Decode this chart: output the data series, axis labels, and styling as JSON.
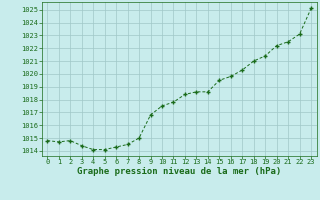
{
  "x": [
    0,
    1,
    2,
    3,
    4,
    5,
    6,
    7,
    8,
    9,
    10,
    11,
    12,
    13,
    14,
    15,
    16,
    17,
    18,
    19,
    20,
    21,
    22,
    23
  ],
  "y": [
    1014.8,
    1014.7,
    1014.8,
    1014.4,
    1014.1,
    1014.1,
    1014.3,
    1014.5,
    1015.0,
    1016.8,
    1017.5,
    1017.8,
    1018.4,
    1018.6,
    1018.6,
    1019.5,
    1019.8,
    1020.3,
    1021.0,
    1021.4,
    1022.2,
    1022.5,
    1023.1,
    1025.1
  ],
  "line_color": "#1a6b1a",
  "marker_color": "#1a6b1a",
  "bg_color": "#c8ecec",
  "grid_color": "#a0c8c8",
  "title": "Graphe pression niveau de la mer (hPa)",
  "ylabel_ticks": [
    1014,
    1015,
    1016,
    1017,
    1018,
    1019,
    1020,
    1021,
    1022,
    1023,
    1024,
    1025
  ],
  "ylim": [
    1013.6,
    1025.6
  ],
  "xlim": [
    -0.5,
    23.5
  ],
  "xlabel_ticks": [
    0,
    1,
    2,
    3,
    4,
    5,
    6,
    7,
    8,
    9,
    10,
    11,
    12,
    13,
    14,
    15,
    16,
    17,
    18,
    19,
    20,
    21,
    22,
    23
  ],
  "tick_fontsize": 5.0,
  "title_fontsize": 6.5,
  "title_color": "#1a6b1a",
  "tick_color": "#1a6b1a"
}
